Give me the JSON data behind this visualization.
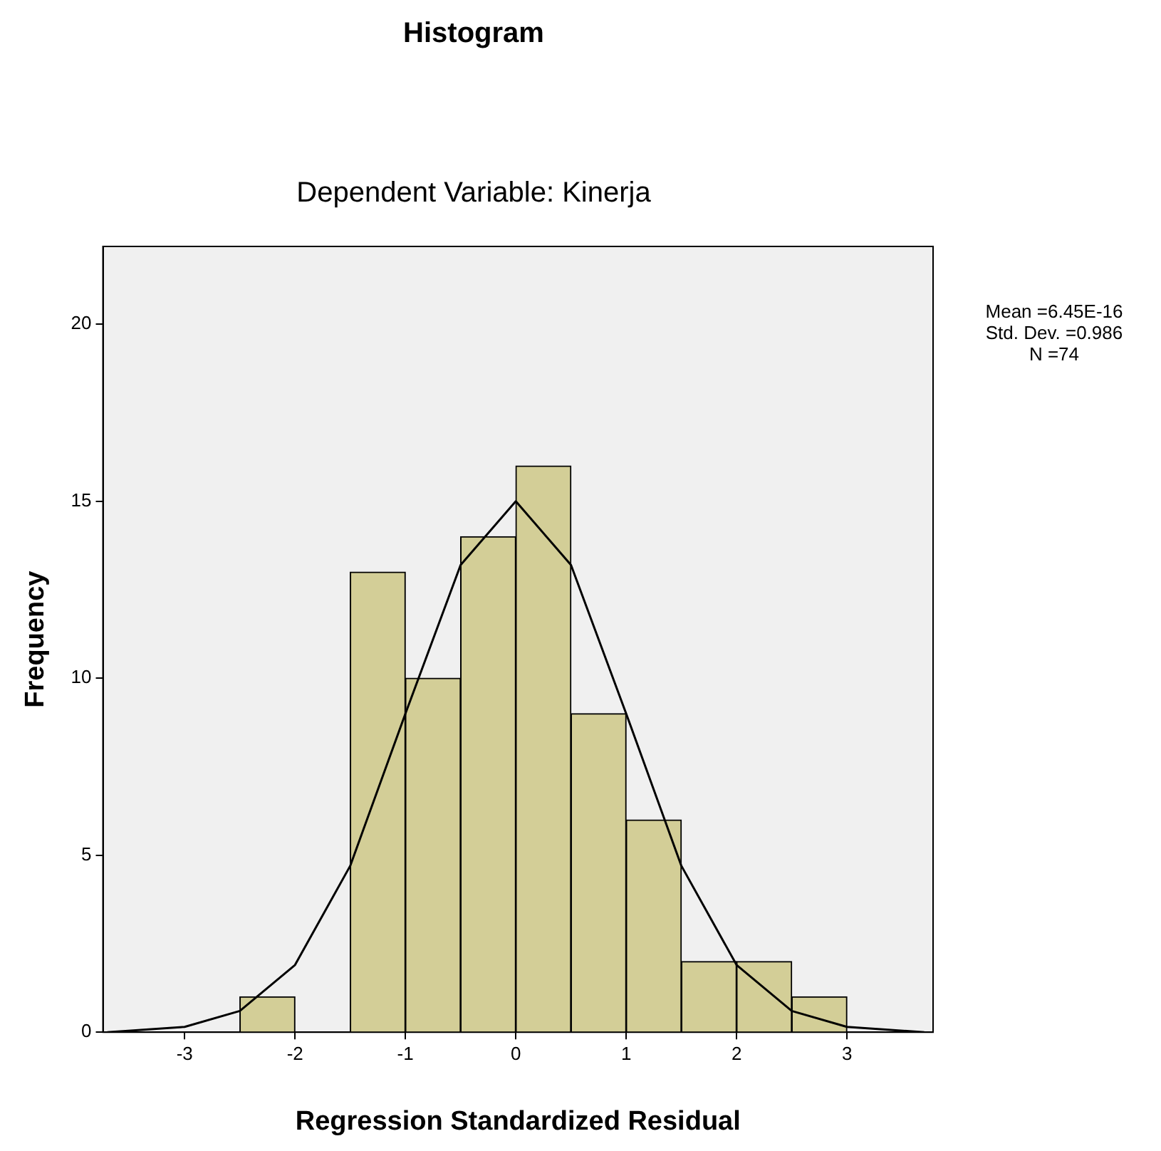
{
  "chart_data": {
    "type": "histogram",
    "title": "Histogram",
    "subtitle": "Dependent Variable: Kinerja",
    "xlabel": "Regression Standardized Residual",
    "ylabel": "Frequency",
    "bins": [
      -2.5,
      -2,
      -1.5,
      -1,
      -0.5,
      0,
      0.5,
      1,
      1.5,
      2,
      2.5,
      3
    ],
    "values": [
      1,
      0,
      13,
      10,
      14,
      16,
      9,
      6,
      2,
      2,
      1
    ],
    "color": "#d3ce97",
    "series": [
      {
        "type": "line",
        "color": "#000000",
        "x": [
          -3.7,
          -3,
          -2.5,
          -2,
          -1.5,
          -1,
          -0.5,
          0,
          0.5,
          1,
          1.5,
          2,
          2.5,
          3,
          3.7
        ],
        "values": [
          0,
          0.15,
          0.6,
          1.9,
          4.7,
          9,
          13.2,
          15,
          13.2,
          9,
          4.7,
          1.9,
          0.6,
          0.15,
          0
        ]
      }
    ],
    "xlim": [
      -3.74,
      3.78
    ],
    "xticks": [
      -3,
      -2,
      -1,
      0,
      1,
      2,
      3
    ],
    "ylim": [
      0,
      22.2
    ],
    "yticks": [
      0,
      5,
      10,
      15,
      20
    ],
    "grid": false,
    "legend": false,
    "marker": "none",
    "line_style": "solid",
    "annotations": [
      "Mean =6.45E-16",
      "Std. Dev. =0.986",
      "N =74"
    ]
  }
}
